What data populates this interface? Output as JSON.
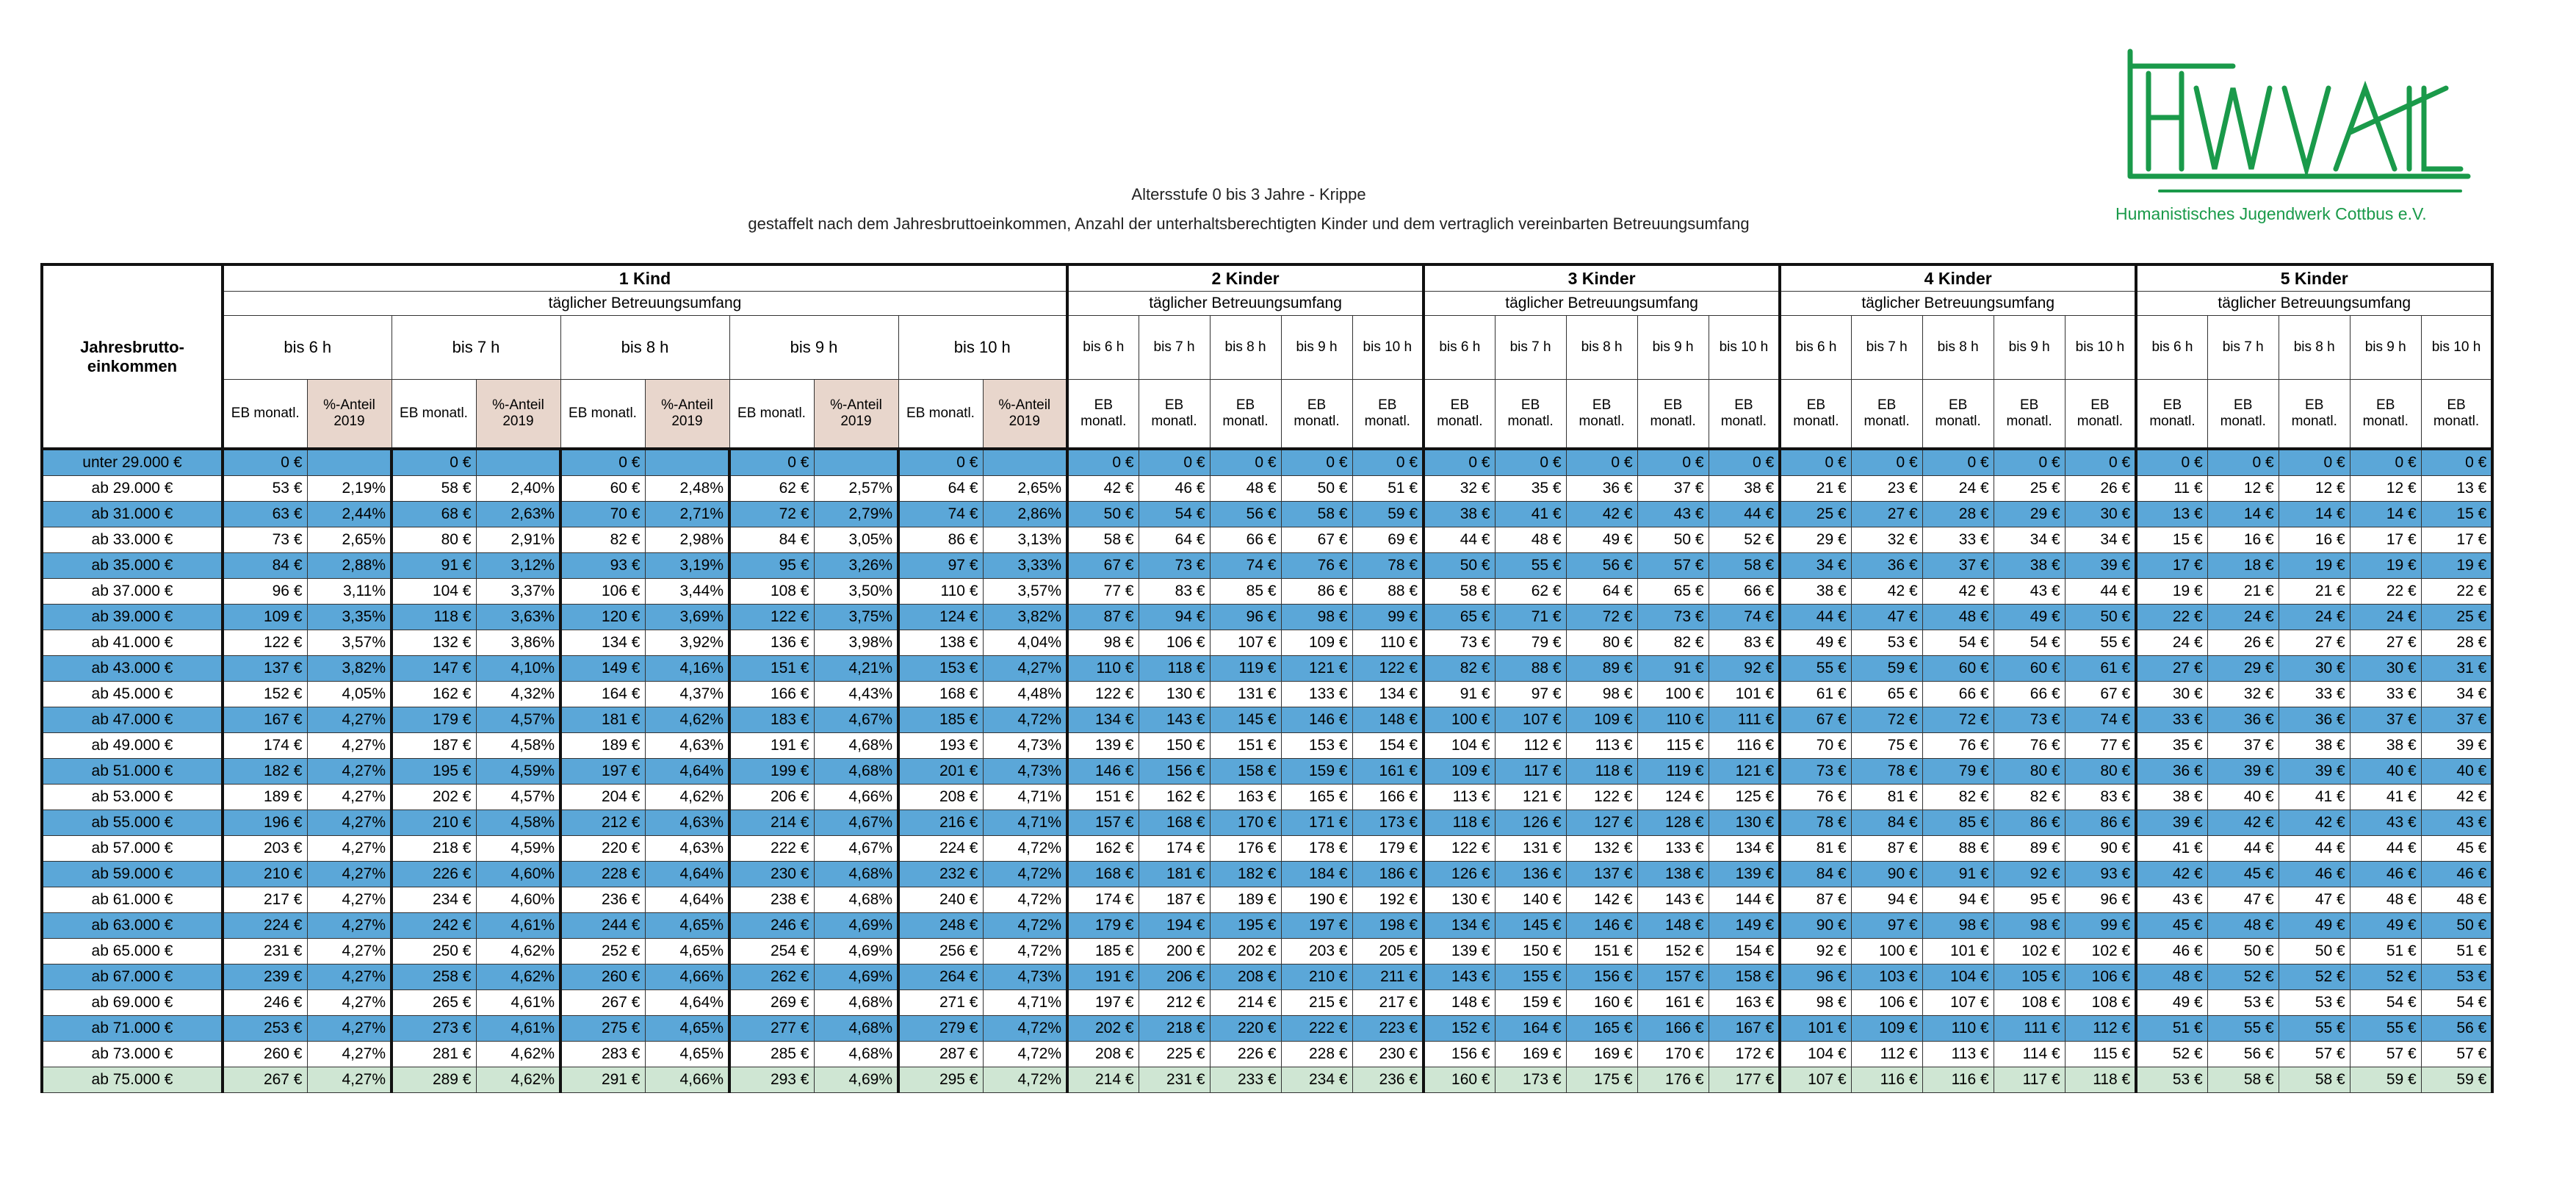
{
  "header": {
    "title": "Altersstufe 0 bis 3 Jahre - Krippe",
    "subtitle": "gestaffelt nach dem Jahresbruttoeinkommen, Anzahl der unterhaltsberechtigten Kinder und dem vertraglich vereinbarten Betreuungsumfang"
  },
  "logo": {
    "text": "Humanistisches Jugendwerk Cottbus e.V."
  },
  "table": {
    "row_header": "Jahresbrutto- einkommen",
    "eb_label": "EB monatl.",
    "pct_label": "%-Anteil 2019",
    "groups": [
      {
        "name": "1 Kind",
        "sub": "täglicher Betreuungsumfang",
        "hours": [
          "bis 6 h",
          "bis 7 h",
          "bis 8 h",
          "bis 9 h",
          "bis 10 h"
        ]
      },
      {
        "name": "2 Kinder",
        "sub": "täglicher Betreuungsumfang",
        "hours": [
          "bis 6 h",
          "bis 7 h",
          "bis 8 h",
          "bis 9 h",
          "bis 10 h"
        ]
      },
      {
        "name": "3 Kinder",
        "sub": "täglicher Betreuungsumfang",
        "hours": [
          "bis 6 h",
          "bis 7 h",
          "bis 8 h",
          "bis 9 h",
          "bis 10 h"
        ]
      },
      {
        "name": "4 Kinder",
        "sub": "täglicher Betreuungsumfang",
        "hours": [
          "bis 6 h",
          "bis 7 h",
          "bis 8 h",
          "bis 9 h",
          "bis 10 h"
        ]
      },
      {
        "name": "5 Kinder",
        "sub": "täglicher Betreuungsumfang",
        "hours": [
          "bis 6 h",
          "bis 7 h",
          "bis 8 h",
          "bis 9 h",
          "bis 10 h"
        ]
      }
    ],
    "rows": [
      {
        "label": "unter 29.000 €",
        "cells": [
          "0 €",
          null,
          "0 €",
          null,
          "0 €",
          null,
          "0 €",
          null,
          "0 €",
          null,
          "0 €",
          "0 €",
          "0 €",
          "0 €",
          "0 €",
          "0 €",
          "0 €",
          "0 €",
          "0 €",
          "0 €",
          "0 €",
          "0 €",
          "0 €",
          "0 €",
          "0 €",
          "0 €",
          "0 €",
          "0 €",
          "0 €",
          "0 €"
        ]
      },
      {
        "label": "ab 29.000 €",
        "cells": [
          "53 €",
          "2,19%",
          "58 €",
          "2,40%",
          "60 €",
          "2,48%",
          "62 €",
          "2,57%",
          "64 €",
          "2,65%",
          "42 €",
          "46 €",
          "48 €",
          "50 €",
          "51 €",
          "32 €",
          "35 €",
          "36 €",
          "37 €",
          "38 €",
          "21 €",
          "23 €",
          "24 €",
          "25 €",
          "26 €",
          "11 €",
          "12 €",
          "12 €",
          "12 €",
          "13 €"
        ]
      },
      {
        "label": "ab 31.000 €",
        "cells": [
          "63 €",
          "2,44%",
          "68 €",
          "2,63%",
          "70 €",
          "2,71%",
          "72 €",
          "2,79%",
          "74 €",
          "2,86%",
          "50 €",
          "54 €",
          "56 €",
          "58 €",
          "59 €",
          "38 €",
          "41 €",
          "42 €",
          "43 €",
          "44 €",
          "25 €",
          "27 €",
          "28 €",
          "29 €",
          "30 €",
          "13 €",
          "14 €",
          "14 €",
          "14 €",
          "15 €"
        ]
      },
      {
        "label": "ab 33.000 €",
        "cells": [
          "73 €",
          "2,65%",
          "80 €",
          "2,91%",
          "82 €",
          "2,98%",
          "84 €",
          "3,05%",
          "86 €",
          "3,13%",
          "58 €",
          "64 €",
          "66 €",
          "67 €",
          "69 €",
          "44 €",
          "48 €",
          "49 €",
          "50 €",
          "52 €",
          "29 €",
          "32 €",
          "33 €",
          "34 €",
          "34 €",
          "15 €",
          "16 €",
          "16 €",
          "17 €",
          "17 €"
        ]
      },
      {
        "label": "ab 35.000 €",
        "cells": [
          "84 €",
          "2,88%",
          "91 €",
          "3,12%",
          "93 €",
          "3,19%",
          "95 €",
          "3,26%",
          "97 €",
          "3,33%",
          "67 €",
          "73 €",
          "74 €",
          "76 €",
          "78 €",
          "50 €",
          "55 €",
          "56 €",
          "57 €",
          "58 €",
          "34 €",
          "36 €",
          "37 €",
          "38 €",
          "39 €",
          "17 €",
          "18 €",
          "19 €",
          "19 €",
          "19 €"
        ]
      },
      {
        "label": "ab 37.000 €",
        "cells": [
          "96 €",
          "3,11%",
          "104 €",
          "3,37%",
          "106 €",
          "3,44%",
          "108 €",
          "3,50%",
          "110 €",
          "3,57%",
          "77 €",
          "83 €",
          "85 €",
          "86 €",
          "88 €",
          "58 €",
          "62 €",
          "64 €",
          "65 €",
          "66 €",
          "38 €",
          "42 €",
          "42 €",
          "43 €",
          "44 €",
          "19 €",
          "21 €",
          "21 €",
          "22 €",
          "22 €"
        ]
      },
      {
        "label": "ab 39.000 €",
        "cells": [
          "109 €",
          "3,35%",
          "118 €",
          "3,63%",
          "120 €",
          "3,69%",
          "122 €",
          "3,75%",
          "124 €",
          "3,82%",
          "87 €",
          "94 €",
          "96 €",
          "98 €",
          "99 €",
          "65 €",
          "71 €",
          "72 €",
          "73 €",
          "74 €",
          "44 €",
          "47 €",
          "48 €",
          "49 €",
          "50 €",
          "22 €",
          "24 €",
          "24 €",
          "24 €",
          "25 €"
        ]
      },
      {
        "label": "ab 41.000 €",
        "cells": [
          "122 €",
          "3,57%",
          "132 €",
          "3,86%",
          "134 €",
          "3,92%",
          "136 €",
          "3,98%",
          "138 €",
          "4,04%",
          "98 €",
          "106 €",
          "107 €",
          "109 €",
          "110 €",
          "73 €",
          "79 €",
          "80 €",
          "82 €",
          "83 €",
          "49 €",
          "53 €",
          "54 €",
          "54 €",
          "55 €",
          "24 €",
          "26 €",
          "27 €",
          "27 €",
          "28 €"
        ]
      },
      {
        "label": "ab 43.000 €",
        "cells": [
          "137 €",
          "3,82%",
          "147 €",
          "4,10%",
          "149 €",
          "4,16%",
          "151 €",
          "4,21%",
          "153 €",
          "4,27%",
          "110 €",
          "118 €",
          "119 €",
          "121 €",
          "122 €",
          "82 €",
          "88 €",
          "89 €",
          "91 €",
          "92 €",
          "55 €",
          "59 €",
          "60 €",
          "60 €",
          "61 €",
          "27 €",
          "29 €",
          "30 €",
          "30 €",
          "31 €"
        ]
      },
      {
        "label": "ab 45.000 €",
        "cells": [
          "152 €",
          "4,05%",
          "162 €",
          "4,32%",
          "164 €",
          "4,37%",
          "166 €",
          "4,43%",
          "168 €",
          "4,48%",
          "122 €",
          "130 €",
          "131 €",
          "133 €",
          "134 €",
          "91 €",
          "97 €",
          "98 €",
          "100 €",
          "101 €",
          "61 €",
          "65 €",
          "66 €",
          "66 €",
          "67 €",
          "30 €",
          "32 €",
          "33 €",
          "33 €",
          "34 €"
        ]
      },
      {
        "label": "ab 47.000 €",
        "cells": [
          "167 €",
          "4,27%",
          "179 €",
          "4,57%",
          "181 €",
          "4,62%",
          "183 €",
          "4,67%",
          "185 €",
          "4,72%",
          "134 €",
          "143 €",
          "145 €",
          "146 €",
          "148 €",
          "100 €",
          "107 €",
          "109 €",
          "110 €",
          "111 €",
          "67 €",
          "72 €",
          "72 €",
          "73 €",
          "74 €",
          "33 €",
          "36 €",
          "36 €",
          "37 €",
          "37 €"
        ]
      },
      {
        "label": "ab 49.000 €",
        "cells": [
          "174 €",
          "4,27%",
          "187 €",
          "4,58%",
          "189 €",
          "4,63%",
          "191 €",
          "4,68%",
          "193 €",
          "4,73%",
          "139 €",
          "150 €",
          "151 €",
          "153 €",
          "154 €",
          "104 €",
          "112 €",
          "113 €",
          "115 €",
          "116 €",
          "70 €",
          "75 €",
          "76 €",
          "76 €",
          "77 €",
          "35 €",
          "37 €",
          "38 €",
          "38 €",
          "39 €"
        ]
      },
      {
        "label": "ab 51.000 €",
        "cells": [
          "182 €",
          "4,27%",
          "195 €",
          "4,59%",
          "197 €",
          "4,64%",
          "199 €",
          "4,68%",
          "201 €",
          "4,73%",
          "146 €",
          "156 €",
          "158 €",
          "159 €",
          "161 €",
          "109 €",
          "117 €",
          "118 €",
          "119 €",
          "121 €",
          "73 €",
          "78 €",
          "79 €",
          "80 €",
          "80 €",
          "36 €",
          "39 €",
          "39 €",
          "40 €",
          "40 €"
        ]
      },
      {
        "label": "ab 53.000 €",
        "cells": [
          "189 €",
          "4,27%",
          "202 €",
          "4,57%",
          "204 €",
          "4,62%",
          "206 €",
          "4,66%",
          "208 €",
          "4,71%",
          "151 €",
          "162 €",
          "163 €",
          "165 €",
          "166 €",
          "113 €",
          "121 €",
          "122 €",
          "124 €",
          "125 €",
          "76 €",
          "81 €",
          "82 €",
          "82 €",
          "83 €",
          "38 €",
          "40 €",
          "41 €",
          "41 €",
          "42 €"
        ]
      },
      {
        "label": "ab 55.000 €",
        "cells": [
          "196 €",
          "4,27%",
          "210 €",
          "4,58%",
          "212 €",
          "4,63%",
          "214 €",
          "4,67%",
          "216 €",
          "4,71%",
          "157 €",
          "168 €",
          "170 €",
          "171 €",
          "173 €",
          "118 €",
          "126 €",
          "127 €",
          "128 €",
          "130 €",
          "78 €",
          "84 €",
          "85 €",
          "86 €",
          "86 €",
          "39 €",
          "42 €",
          "42 €",
          "43 €",
          "43 €"
        ]
      },
      {
        "label": "ab 57.000 €",
        "cells": [
          "203 €",
          "4,27%",
          "218 €",
          "4,59%",
          "220 €",
          "4,63%",
          "222 €",
          "4,67%",
          "224 €",
          "4,72%",
          "162 €",
          "174 €",
          "176 €",
          "178 €",
          "179 €",
          "122 €",
          "131 €",
          "132 €",
          "133 €",
          "134 €",
          "81 €",
          "87 €",
          "88 €",
          "89 €",
          "90 €",
          "41 €",
          "44 €",
          "44 €",
          "44 €",
          "45 €"
        ]
      },
      {
        "label": "ab 59.000 €",
        "cells": [
          "210 €",
          "4,27%",
          "226 €",
          "4,60%",
          "228 €",
          "4,64%",
          "230 €",
          "4,68%",
          "232 €",
          "4,72%",
          "168 €",
          "181 €",
          "182 €",
          "184 €",
          "186 €",
          "126 €",
          "136 €",
          "137 €",
          "138 €",
          "139 €",
          "84 €",
          "90 €",
          "91 €",
          "92 €",
          "93 €",
          "42 €",
          "45 €",
          "46 €",
          "46 €",
          "46 €"
        ]
      },
      {
        "label": "ab 61.000 €",
        "cells": [
          "217 €",
          "4,27%",
          "234 €",
          "4,60%",
          "236 €",
          "4,64%",
          "238 €",
          "4,68%",
          "240 €",
          "4,72%",
          "174 €",
          "187 €",
          "189 €",
          "190 €",
          "192 €",
          "130 €",
          "140 €",
          "142 €",
          "143 €",
          "144 €",
          "87 €",
          "94 €",
          "94 €",
          "95 €",
          "96 €",
          "43 €",
          "47 €",
          "47 €",
          "48 €",
          "48 €"
        ]
      },
      {
        "label": "ab 63.000 €",
        "cells": [
          "224 €",
          "4,27%",
          "242 €",
          "4,61%",
          "244 €",
          "4,65%",
          "246 €",
          "4,69%",
          "248 €",
          "4,72%",
          "179 €",
          "194 €",
          "195 €",
          "197 €",
          "198 €",
          "134 €",
          "145 €",
          "146 €",
          "148 €",
          "149 €",
          "90 €",
          "97 €",
          "98 €",
          "98 €",
          "99 €",
          "45 €",
          "48 €",
          "49 €",
          "49 €",
          "50 €"
        ]
      },
      {
        "label": "ab 65.000 €",
        "cells": [
          "231 €",
          "4,27%",
          "250 €",
          "4,62%",
          "252 €",
          "4,65%",
          "254 €",
          "4,69%",
          "256 €",
          "4,72%",
          "185 €",
          "200 €",
          "202 €",
          "203 €",
          "205 €",
          "139 €",
          "150 €",
          "151 €",
          "152 €",
          "154 €",
          "92 €",
          "100 €",
          "101 €",
          "102 €",
          "102 €",
          "46 €",
          "50 €",
          "50 €",
          "51 €",
          "51 €"
        ]
      },
      {
        "label": "ab 67.000 €",
        "cells": [
          "239 €",
          "4,27%",
          "258 €",
          "4,62%",
          "260 €",
          "4,66%",
          "262 €",
          "4,69%",
          "264 €",
          "4,73%",
          "191 €",
          "206 €",
          "208 €",
          "210 €",
          "211 €",
          "143 €",
          "155 €",
          "156 €",
          "157 €",
          "158 €",
          "96 €",
          "103 €",
          "104 €",
          "105 €",
          "106 €",
          "48 €",
          "52 €",
          "52 €",
          "52 €",
          "53 €"
        ]
      },
      {
        "label": "ab 69.000 €",
        "cells": [
          "246 €",
          "4,27%",
          "265 €",
          "4,61%",
          "267 €",
          "4,64%",
          "269 €",
          "4,68%",
          "271 €",
          "4,71%",
          "197 €",
          "212 €",
          "214 €",
          "215 €",
          "217 €",
          "148 €",
          "159 €",
          "160 €",
          "161 €",
          "163 €",
          "98 €",
          "106 €",
          "107 €",
          "108 €",
          "108 €",
          "49 €",
          "53 €",
          "53 €",
          "54 €",
          "54 €"
        ]
      },
      {
        "label": "ab 71.000 €",
        "cells": [
          "253 €",
          "4,27%",
          "273 €",
          "4,61%",
          "275 €",
          "4,65%",
          "277 €",
          "4,68%",
          "279 €",
          "4,72%",
          "202 €",
          "218 €",
          "220 €",
          "222 €",
          "223 €",
          "152 €",
          "164 €",
          "165 €",
          "166 €",
          "167 €",
          "101 €",
          "109 €",
          "110 €",
          "111 €",
          "112 €",
          "51 €",
          "55 €",
          "55 €",
          "55 €",
          "56 €"
        ]
      },
      {
        "label": "ab 73.000 €",
        "cells": [
          "260 €",
          "4,27%",
          "281 €",
          "4,62%",
          "283 €",
          "4,65%",
          "285 €",
          "4,68%",
          "287 €",
          "4,72%",
          "208 €",
          "225 €",
          "226 €",
          "228 €",
          "230 €",
          "156 €",
          "169 €",
          "169 €",
          "170 €",
          "172 €",
          "104 €",
          "112 €",
          "113 €",
          "114 €",
          "115 €",
          "52 €",
          "56 €",
          "57 €",
          "57 €",
          "57 €"
        ]
      },
      {
        "label": "ab 75.000 €",
        "cells": [
          "267 €",
          "4,27%",
          "289 €",
          "4,62%",
          "291 €",
          "4,66%",
          "293 €",
          "4,69%",
          "295 €",
          "4,72%",
          "214 €",
          "231 €",
          "233 €",
          "234 €",
          "236 €",
          "160 €",
          "173 €",
          "175 €",
          "176 €",
          "177 €",
          "107 €",
          "116 €",
          "116 €",
          "117 €",
          "118 €",
          "53 €",
          "58 €",
          "58 €",
          "59 €",
          "59 €"
        ]
      }
    ]
  }
}
